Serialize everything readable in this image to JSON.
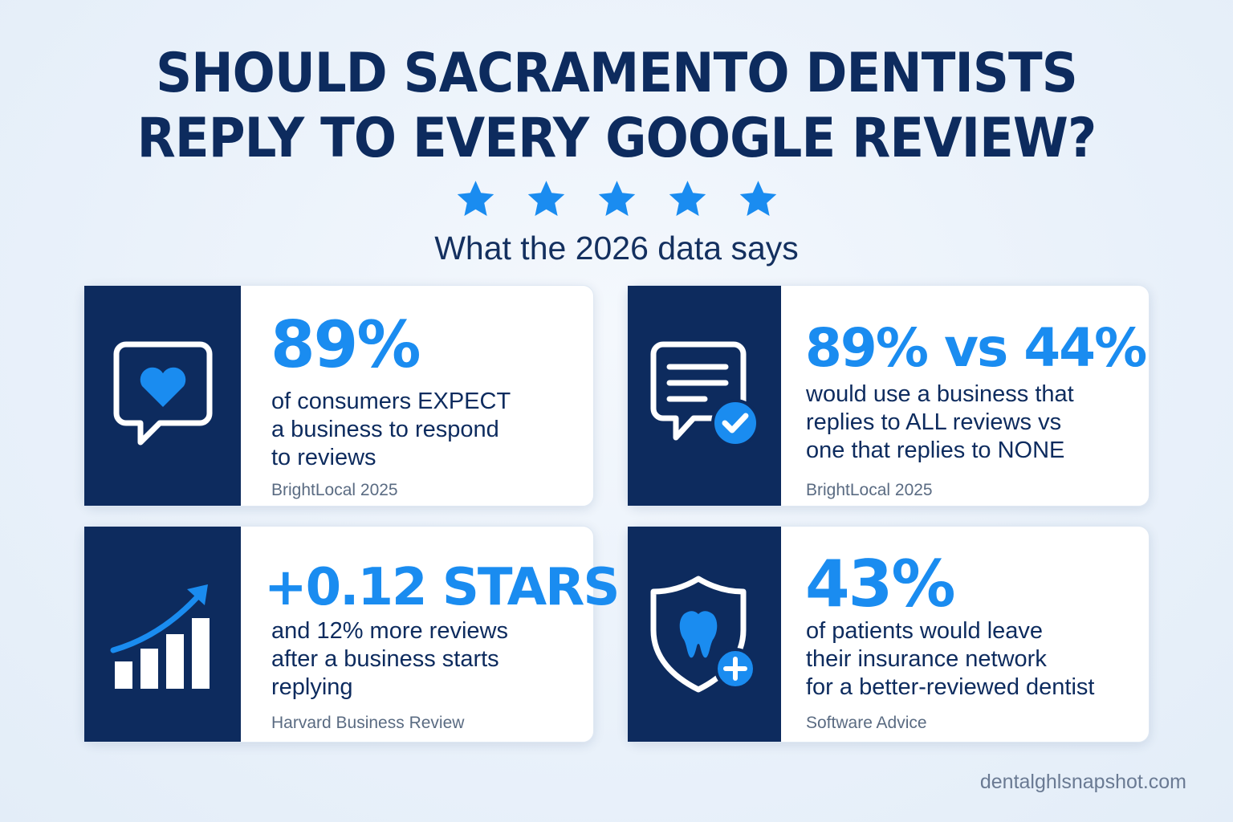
{
  "title": {
    "line1": "SHOULD SACRAMENTO DENTISTS",
    "line2": "REPLY TO EVERY GOOGLE REVIEW?"
  },
  "rating": {
    "stars": 5,
    "color": "#1a8cf0"
  },
  "subtitle": "What the 2026 data says",
  "cards": [
    {
      "icon": "chat-heart-icon",
      "stat": "89%",
      "desc": [
        "of consumers EXPECT",
        "a business to respond",
        "to reviews"
      ],
      "source": "BrightLocal 2025"
    },
    {
      "icon": "message-check-icon",
      "stat": "89% vs 44%",
      "desc": [
        "would use a business that",
        "replies to ALL reviews vs",
        "one that replies to NONE"
      ],
      "source": "BrightLocal 2025"
    },
    {
      "icon": "growth-chart-icon",
      "stat": "+0.12 STARS",
      "desc": [
        "and 12% more reviews",
        "after a business starts",
        "replying"
      ],
      "source": "Harvard Business Review"
    },
    {
      "icon": "shield-tooth-icon",
      "stat": "43%",
      "desc": [
        "of patients would leave",
        "their insurance network",
        "for a better-reviewed dentist"
      ],
      "source": "Software Advice"
    }
  ],
  "footer": "dentalghlsnapshot.com",
  "colors": {
    "navy": "#0d2b5e",
    "accent": "#1a8cf0",
    "background": "#e9f1fa"
  }
}
